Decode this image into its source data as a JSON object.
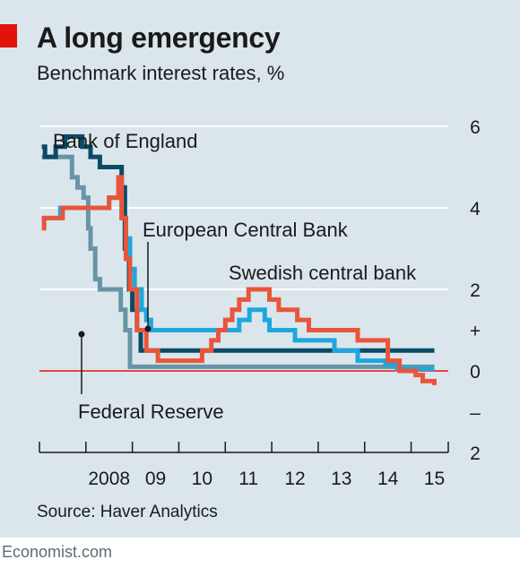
{
  "page": {
    "title": "A long emergency",
    "subtitle": "Benchmark interest rates, %",
    "source": "Source: Haver Analytics",
    "brand": "Economist.com"
  },
  "colors": {
    "background": "#dae6ec",
    "accent": "#e3120b",
    "grid": "#ffffff",
    "zero_line": "#e3120b"
  },
  "chart_data": {
    "type": "line",
    "title": "A long emergency",
    "ylabel": "Benchmark interest rates, %",
    "xlabel": "",
    "xlim": [
      2007.0,
      2015.8
    ],
    "ylim": [
      -2,
      6
    ],
    "grid": true,
    "x_ticks": [
      {
        "value": 2008,
        "label": "2008"
      },
      {
        "value": 2009,
        "label": "09"
      },
      {
        "value": 2010,
        "label": "10"
      },
      {
        "value": 2011,
        "label": "11"
      },
      {
        "value": 2012,
        "label": "12"
      },
      {
        "value": 2013,
        "label": "13"
      },
      {
        "value": 2014,
        "label": "14"
      },
      {
        "value": 2015,
        "label": "15"
      }
    ],
    "y_ticks": [
      {
        "value": 6,
        "label": "6"
      },
      {
        "value": 4,
        "label": "4"
      },
      {
        "value": 2,
        "label": "2"
      },
      {
        "value": 1,
        "label": "+"
      },
      {
        "value": 0,
        "label": "0"
      },
      {
        "value": -1,
        "label": "–"
      },
      {
        "value": -2,
        "label": "2"
      }
    ],
    "series": [
      {
        "name": "Bank of England",
        "color": "#0b4a66",
        "points": [
          [
            2007.05,
            5.5
          ],
          [
            2007.12,
            5.25
          ],
          [
            2007.35,
            5.5
          ],
          [
            2007.55,
            5.75
          ],
          [
            2007.92,
            5.5
          ],
          [
            2008.1,
            5.25
          ],
          [
            2008.3,
            5.0
          ],
          [
            2008.77,
            4.5
          ],
          [
            2008.84,
            3.0
          ],
          [
            2008.93,
            2.0
          ],
          [
            2009.0,
            1.5
          ],
          [
            2009.1,
            1.0
          ],
          [
            2009.18,
            0.5
          ],
          [
            2015.5,
            0.5
          ]
        ]
      },
      {
        "name": "European Central Bank",
        "color": "#1fa7dd",
        "points": [
          [
            2007.05,
            3.75
          ],
          [
            2007.45,
            4.0
          ],
          [
            2008.5,
            4.25
          ],
          [
            2008.77,
            3.75
          ],
          [
            2008.86,
            3.25
          ],
          [
            2008.95,
            2.5
          ],
          [
            2009.05,
            2.0
          ],
          [
            2009.2,
            1.5
          ],
          [
            2009.3,
            1.25
          ],
          [
            2009.4,
            1.0
          ],
          [
            2011.3,
            1.25
          ],
          [
            2011.52,
            1.5
          ],
          [
            2011.85,
            1.25
          ],
          [
            2011.95,
            1.0
          ],
          [
            2012.5,
            0.75
          ],
          [
            2013.35,
            0.5
          ],
          [
            2013.85,
            0.25
          ],
          [
            2014.45,
            0.15
          ],
          [
            2014.7,
            0.05
          ],
          [
            2015.5,
            0.05
          ]
        ]
      },
      {
        "name": "Swedish central bank",
        "color": "#e9553a",
        "points": [
          [
            2007.05,
            3.5
          ],
          [
            2007.1,
            3.75
          ],
          [
            2007.5,
            4.0
          ],
          [
            2008.5,
            4.25
          ],
          [
            2008.7,
            4.75
          ],
          [
            2008.77,
            3.75
          ],
          [
            2008.86,
            2.75
          ],
          [
            2008.95,
            2.0
          ],
          [
            2009.1,
            1.0
          ],
          [
            2009.3,
            0.5
          ],
          [
            2009.55,
            0.25
          ],
          [
            2010.5,
            0.5
          ],
          [
            2010.7,
            0.75
          ],
          [
            2010.85,
            1.0
          ],
          [
            2011.0,
            1.25
          ],
          [
            2011.15,
            1.5
          ],
          [
            2011.3,
            1.75
          ],
          [
            2011.5,
            2.0
          ],
          [
            2011.95,
            1.75
          ],
          [
            2012.15,
            1.5
          ],
          [
            2012.55,
            1.25
          ],
          [
            2012.8,
            1.0
          ],
          [
            2013.85,
            0.75
          ],
          [
            2014.5,
            0.25
          ],
          [
            2014.75,
            0.0
          ],
          [
            2015.1,
            -0.1
          ],
          [
            2015.25,
            -0.25
          ],
          [
            2015.5,
            -0.35
          ]
        ]
      },
      {
        "name": "Federal Reserve",
        "color": "#6794a7",
        "points": [
          [
            2007.05,
            5.25
          ],
          [
            2007.6,
            5.25
          ],
          [
            2007.7,
            4.75
          ],
          [
            2007.82,
            4.5
          ],
          [
            2007.95,
            4.25
          ],
          [
            2008.05,
            3.5
          ],
          [
            2008.1,
            3.0
          ],
          [
            2008.2,
            2.25
          ],
          [
            2008.3,
            2.0
          ],
          [
            2008.75,
            1.5
          ],
          [
            2008.85,
            1.0
          ],
          [
            2008.95,
            0.1
          ],
          [
            2015.5,
            0.1
          ]
        ]
      }
    ],
    "annotations": [
      {
        "text": "Bank of England",
        "series": "Bank of England"
      },
      {
        "text": "European Central Bank",
        "series": "European Central Bank"
      },
      {
        "text": "Swedish central bank",
        "series": "Swedish central bank"
      },
      {
        "text": "Federal Reserve",
        "series": "Federal Reserve"
      }
    ]
  }
}
